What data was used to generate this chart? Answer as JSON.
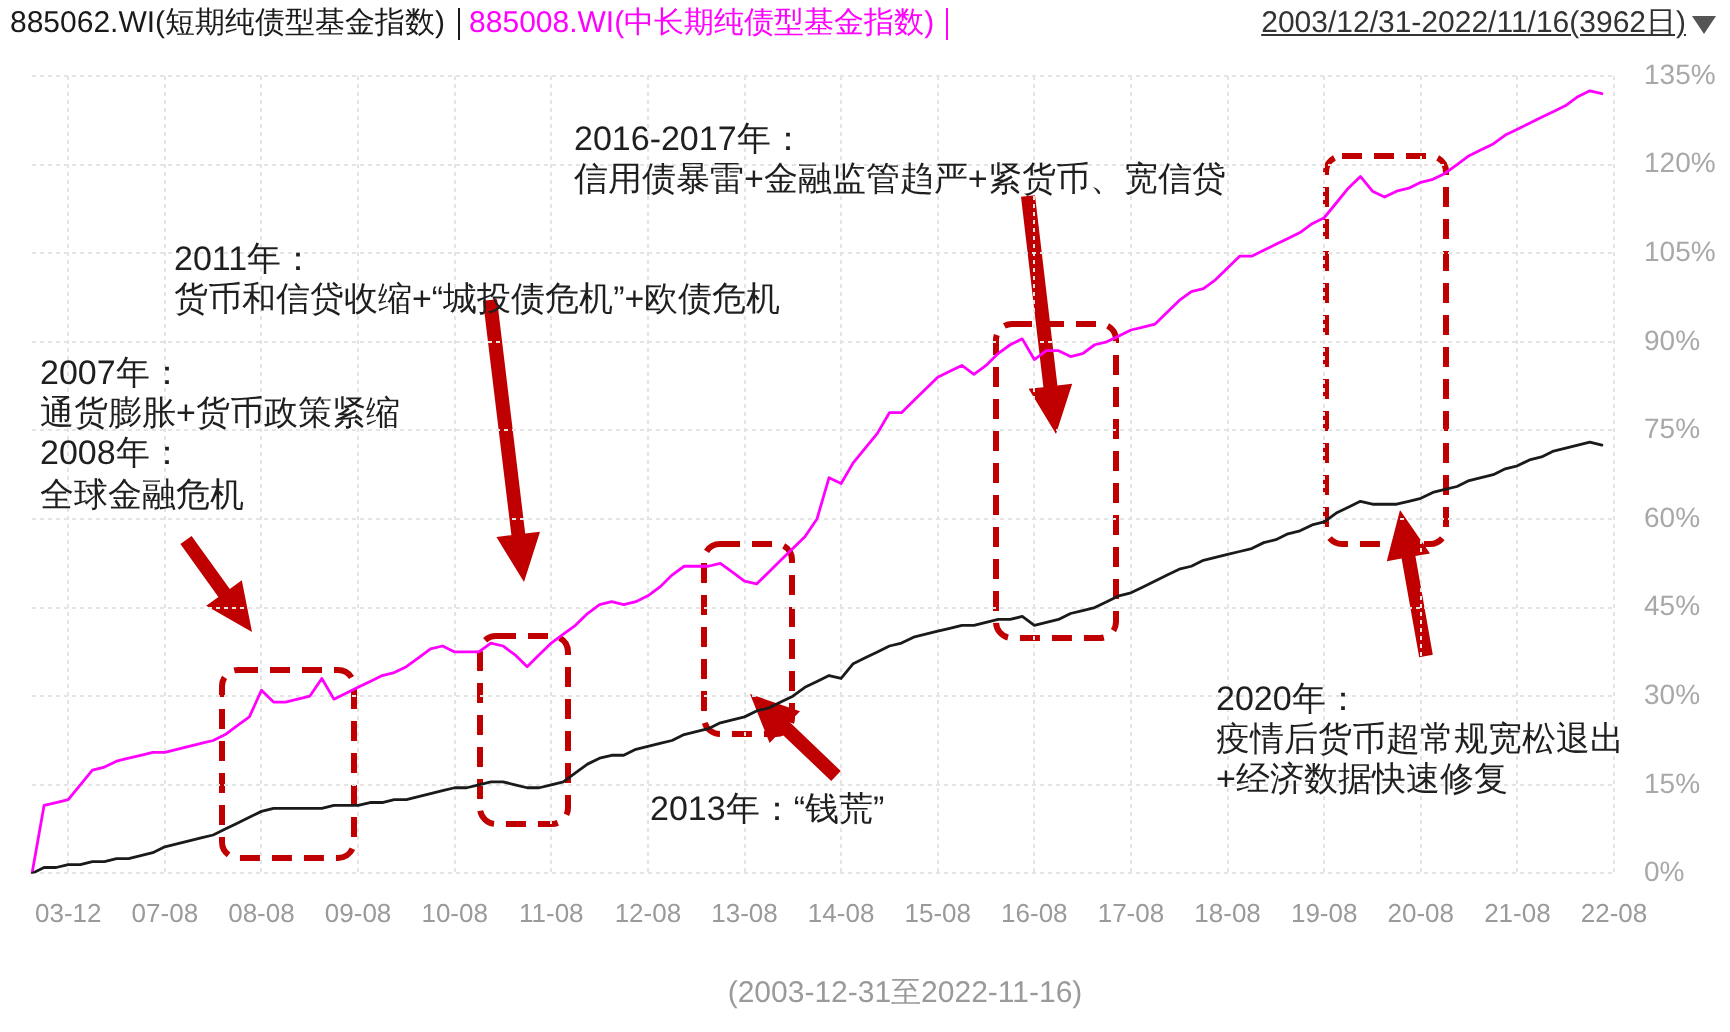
{
  "chart_data": {
    "type": "line",
    "subtitle": "2003/12/31-2022/11/16(3962日)",
    "categories": [
      null,
      null,
      null,
      "03-12",
      null,
      null,
      null,
      null,
      null,
      null,
      null,
      "07-08",
      null,
      null,
      null,
      null,
      null,
      null,
      null,
      "08-08",
      null,
      null,
      null,
      null,
      null,
      null,
      null,
      "09-08",
      null,
      null,
      null,
      null,
      null,
      null,
      null,
      "10-08",
      null,
      null,
      null,
      null,
      null,
      null,
      null,
      "11-08",
      null,
      null,
      null,
      null,
      null,
      null,
      null,
      "12-08",
      null,
      null,
      null,
      null,
      null,
      null,
      null,
      "13-08",
      null,
      null,
      null,
      null,
      null,
      null,
      null,
      "14-08",
      null,
      null,
      null,
      null,
      null,
      null,
      null,
      "15-08",
      null,
      null,
      null,
      null,
      null,
      null,
      null,
      "16-08",
      null,
      null,
      null,
      null,
      null,
      null,
      null,
      "17-08",
      null,
      null,
      null,
      null,
      null,
      null,
      null,
      "18-08",
      null,
      null,
      null,
      null,
      null,
      null,
      null,
      "19-08",
      null,
      null,
      null,
      null,
      null,
      null,
      null,
      "20-08",
      null,
      null,
      null,
      null,
      null,
      null,
      null,
      "21-08",
      null,
      null,
      null,
      null,
      null,
      null,
      null,
      "22-08"
    ],
    "series": [
      {
        "name": "885062.WI(短期纯债型基金指数)",
        "color": "#1a1a1a",
        "values": [
          0,
          1,
          1,
          1.5,
          1.5,
          2,
          2,
          2.5,
          2.5,
          3,
          3.5,
          4.5,
          5,
          5.5,
          6,
          6.5,
          7.5,
          8.5,
          9.5,
          10.5,
          11,
          11,
          11,
          11,
          11,
          11.5,
          11.5,
          11.5,
          12,
          12,
          12.5,
          12.5,
          13,
          13.5,
          14,
          14.5,
          14.5,
          15,
          15.5,
          15.5,
          15,
          14.5,
          14.5,
          15,
          15.5,
          17,
          18.5,
          19.5,
          20,
          20,
          21,
          21.5,
          22,
          22.5,
          23.5,
          24,
          24.5,
          25.5,
          26,
          26.5,
          27.5,
          28,
          29,
          30,
          31.5,
          32.5,
          33.5,
          33,
          35.5,
          36.5,
          37.5,
          38.5,
          39,
          40,
          40.5,
          41,
          41.5,
          42,
          42,
          42.5,
          43,
          43,
          43.5,
          42,
          42.5,
          43,
          44,
          44.5,
          45,
          46,
          47,
          47.5,
          48.5,
          49.5,
          50.5,
          51.5,
          52,
          53,
          53.5,
          54,
          54.5,
          55,
          56,
          56.5,
          57.5,
          58,
          59,
          59.5,
          61,
          62,
          63,
          62.5,
          62.5,
          62.5,
          63,
          63.5,
          64.5,
          65,
          65.5,
          66.5,
          67,
          67.5,
          68.5,
          69,
          70,
          70.5,
          71.5,
          72,
          72.5,
          73,
          72.5,
          null
        ]
      },
      {
        "name": "885008.WI(中长期纯债型基金指数)",
        "color": "#ff00ff",
        "values": [
          0,
          11.5,
          12,
          12.5,
          15,
          17.5,
          18,
          19,
          19.5,
          20,
          20.5,
          20.5,
          21,
          21.5,
          22,
          22.5,
          23.5,
          25,
          26.5,
          31,
          29,
          29,
          29.5,
          30,
          33,
          29.5,
          30.5,
          31.5,
          32.5,
          33.5,
          34,
          35,
          36.5,
          38,
          38.5,
          37.5,
          37.5,
          37.5,
          39,
          38.5,
          37,
          35,
          37,
          39,
          40.5,
          42,
          44,
          45.5,
          46,
          45.5,
          46,
          47,
          48.5,
          50.5,
          52,
          52,
          52,
          52.5,
          51,
          49.5,
          49,
          51,
          53,
          55,
          57,
          60,
          67,
          66,
          69.5,
          72,
          74.5,
          78,
          78,
          80,
          82,
          84,
          85,
          86,
          84.5,
          86,
          88,
          89.5,
          90.5,
          87,
          88.5,
          88.5,
          87.5,
          88,
          89.5,
          90,
          91,
          92,
          92.5,
          93,
          95,
          97,
          98.5,
          99,
          100.5,
          102.5,
          104.5,
          104.5,
          105.5,
          106.5,
          107.5,
          108.5,
          110,
          111,
          113.5,
          116,
          118,
          115.5,
          114.5,
          115.5,
          116,
          117,
          117.5,
          118.5,
          120,
          121.5,
          122.5,
          123.5,
          125,
          126,
          127,
          128,
          129,
          130,
          131.5,
          132.5,
          132,
          null
        ]
      }
    ],
    "ylim": [
      0,
      135
    ],
    "yticks": [
      {
        "value": 0,
        "label": "0%"
      },
      {
        "value": 15,
        "label": "15%"
      },
      {
        "value": 30,
        "label": "30%"
      },
      {
        "value": 45,
        "label": "45%"
      },
      {
        "value": 60,
        "label": "60%"
      },
      {
        "value": 75,
        "label": "75%"
      },
      {
        "value": 90,
        "label": "90%"
      },
      {
        "value": 105,
        "label": "105%"
      },
      {
        "value": 120,
        "label": "120%"
      },
      {
        "value": 135,
        "label": "135%"
      }
    ],
    "grid": true,
    "legend": "top left",
    "annotations": [
      "2007年：",
      "通货膨胀+货币政策紧缩",
      "2008年：",
      "全球金融危机",
      "2011年：",
      "货币和信贷收缩+“城投债危机”+欧债危机",
      "2016-2017年：",
      "信用债暴雷+金融监管趋严+紧货币、宽信贷",
      "2013年：“钱荒”",
      "2020年：",
      "疫情后货币超常规宽松退出",
      "+经济数据快速修复",
      "(2003-12-31至2022-11-16)"
    ]
  }
}
